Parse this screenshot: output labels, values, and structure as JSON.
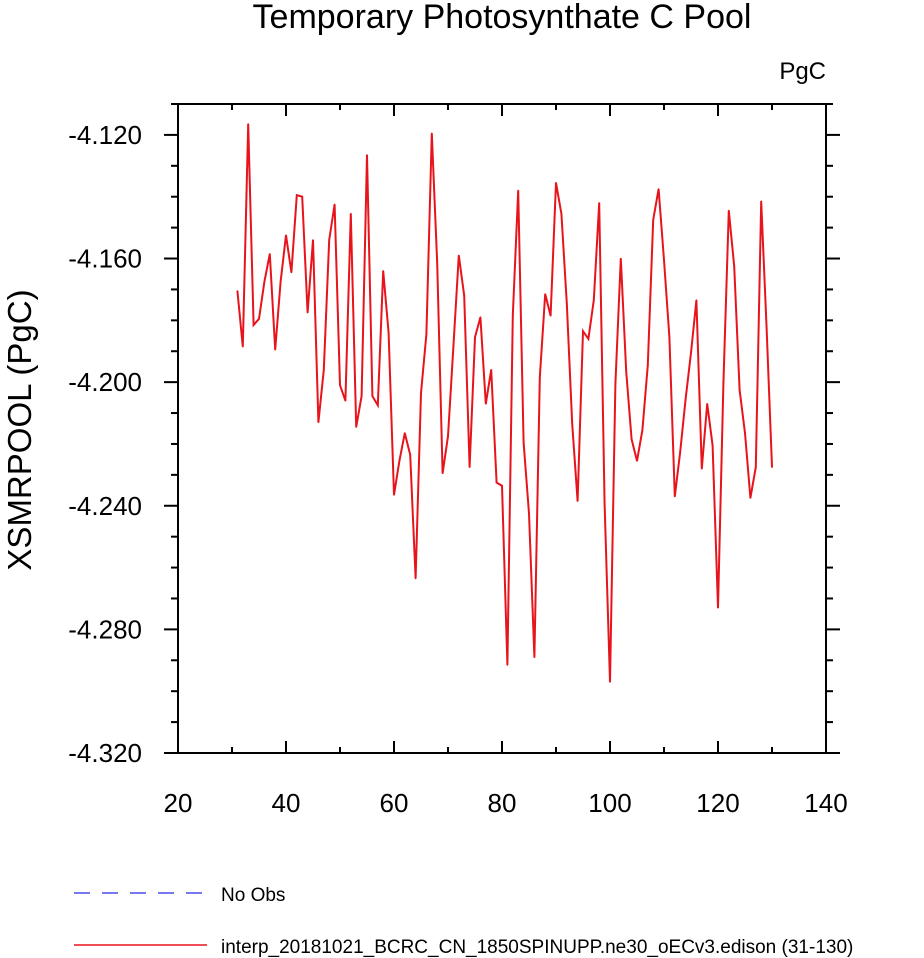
{
  "chart_data": {
    "type": "line",
    "title": "Temporary Photosynthate C Pool",
    "units": "PgC",
    "ylabel": "XSMRPOOL  (PgC)",
    "xlabel": "",
    "xlim": [
      20,
      140
    ],
    "ylim": [
      -4.32,
      -4.11
    ],
    "xticks": [
      20,
      40,
      60,
      80,
      100,
      120,
      140
    ],
    "yticks": [
      -4.32,
      -4.28,
      -4.24,
      -4.2,
      -4.16,
      -4.12
    ],
    "xtick_labels": [
      "20",
      "40",
      "60",
      "80",
      "100",
      "120",
      "140"
    ],
    "ytick_labels": [
      "-4.320",
      "-4.280",
      "-4.240",
      "-4.200",
      "-4.160",
      "-4.120"
    ],
    "grid": false,
    "legend_position": "bottom",
    "series": [
      {
        "name": "No Obs",
        "color": "#4a4ae8",
        "dash": "dashed",
        "x": [],
        "y": []
      },
      {
        "name": "interp_20181021_BCRC_CN_1850SPINUPP.ne30_oECv3.edison (31-130)",
        "color": "#e8141b",
        "dash": "solid",
        "x": [
          31,
          32,
          33,
          34,
          35,
          36,
          37,
          38,
          39,
          40,
          41,
          42,
          43,
          44,
          45,
          46,
          47,
          48,
          49,
          50,
          51,
          52,
          53,
          54,
          55,
          56,
          57,
          58,
          59,
          60,
          61,
          62,
          63,
          64,
          65,
          66,
          67,
          68,
          69,
          70,
          71,
          72,
          73,
          74,
          75,
          76,
          77,
          78,
          79,
          80,
          81,
          82,
          83,
          84,
          85,
          86,
          87,
          88,
          89,
          90,
          91,
          92,
          93,
          94,
          95,
          96,
          97,
          98,
          99,
          100,
          101,
          102,
          103,
          104,
          105,
          106,
          107,
          108,
          109,
          110,
          111,
          112,
          113,
          114,
          115,
          116,
          117,
          118,
          119,
          120,
          121,
          122,
          123,
          124,
          125,
          126,
          127,
          128,
          129,
          130
        ],
        "y": [
          -4.1705,
          -4.1885,
          -4.1165,
          -4.1815,
          -4.1795,
          -4.1675,
          -4.1585,
          -4.1895,
          -4.1675,
          -4.1525,
          -4.1645,
          -4.1395,
          -4.14,
          -4.1775,
          -4.154,
          -4.213,
          -4.196,
          -4.154,
          -4.1425,
          -4.201,
          -4.206,
          -4.1455,
          -4.2145,
          -4.2045,
          -4.1265,
          -4.2045,
          -4.2075,
          -4.164,
          -4.184,
          -4.2365,
          -4.2255,
          -4.2165,
          -4.2235,
          -4.2635,
          -4.2035,
          -4.1845,
          -4.1195,
          -4.1615,
          -4.2295,
          -4.2175,
          -4.1885,
          -4.159,
          -4.172,
          -4.2275,
          -4.1855,
          -4.179,
          -4.207,
          -4.196,
          -4.2325,
          -4.2335,
          -4.2915,
          -4.1785,
          -4.138,
          -4.2195,
          -4.2425,
          -4.289,
          -4.1985,
          -4.1715,
          -4.1785,
          -4.1355,
          -4.1455,
          -4.1745,
          -4.2135,
          -4.2385,
          -4.1835,
          -4.186,
          -4.1735,
          -4.142,
          -4.2395,
          -4.297,
          -4.2005,
          -4.16,
          -4.1965,
          -4.2185,
          -4.2255,
          -4.2155,
          -4.1945,
          -4.1475,
          -4.1375,
          -4.1605,
          -4.1855,
          -4.237,
          -4.2225,
          -4.2055,
          -4.1905,
          -4.1735,
          -4.228,
          -4.207,
          -4.2205,
          -4.273,
          -4.2005,
          -4.1445,
          -4.1625,
          -4.2025,
          -4.2165,
          -4.2375,
          -4.2275,
          -4.1415,
          -4.1825,
          -4.2275
        ]
      }
    ]
  }
}
